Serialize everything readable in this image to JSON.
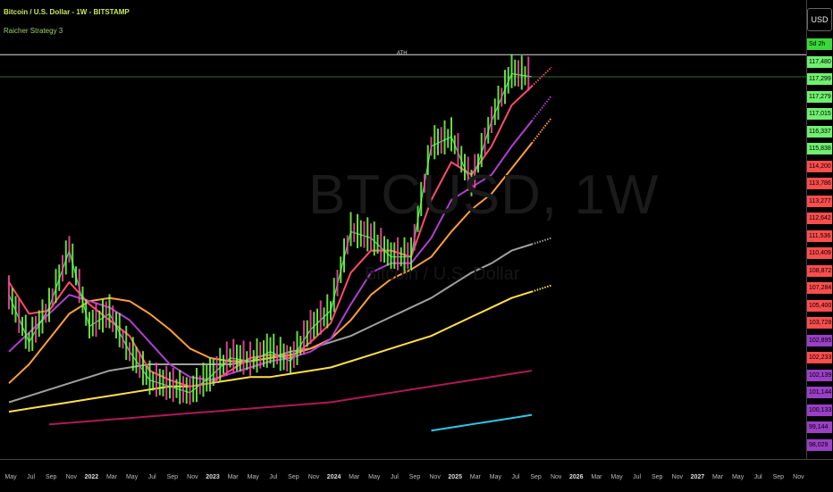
{
  "header": {
    "title": "Bitcoin / U.S. Dollar - 1W - BITSTAMP",
    "strategy": "Raicher Strategy 3"
  },
  "currency_button": "USD",
  "watermark": {
    "symbol": "BTCUSD, 1W",
    "name": "Bitcoin / U.S. Dollar"
  },
  "ath_label": "ATH",
  "price_labels": [
    {
      "text": "Sd 2h",
      "color": "#3ad93a"
    },
    {
      "text": "117,480",
      "color": "#6ff06f"
    },
    {
      "text": "117,299",
      "color": "#6ff06f"
    },
    {
      "text": "117,279",
      "color": "#6ff06f"
    },
    {
      "text": "117,015",
      "color": "#6ff06f"
    },
    {
      "text": "116,337",
      "color": "#6ff06f"
    },
    {
      "text": "115,838",
      "color": "#6ff06f"
    },
    {
      "text": "114,200",
      "color": "#ff4d4d"
    },
    {
      "text": "113,786",
      "color": "#ff4d4d"
    },
    {
      "text": "113,277",
      "color": "#ff4d4d"
    },
    {
      "text": "112,642",
      "color": "#ff4d4d"
    },
    {
      "text": "111,536",
      "color": "#ff4d4d"
    },
    {
      "text": "110,409",
      "color": "#ff4d4d"
    },
    {
      "text": "108,872",
      "color": "#ff4d4d"
    },
    {
      "text": "107,284",
      "color": "#ff4d4d"
    },
    {
      "text": "105,400",
      "color": "#ff4d4d"
    },
    {
      "text": "103,728",
      "color": "#ff4d4d"
    },
    {
      "text": "102,895",
      "color": "#9b3fc7"
    },
    {
      "text": "102,233",
      "color": "#ff4d4d"
    },
    {
      "text": "102,139",
      "color": "#9b3fc7"
    },
    {
      "text": "101,144",
      "color": "#9b3fc7"
    },
    {
      "text": "100,133",
      "color": "#9b3fc7"
    },
    {
      "text": "99,144",
      "color": "#9b3fc7"
    },
    {
      "text": "98,029",
      "color": "#9b3fc7"
    }
  ],
  "x_ticks": [
    {
      "label": "May",
      "year": false
    },
    {
      "label": "Jul",
      "year": false
    },
    {
      "label": "Sep",
      "year": false
    },
    {
      "label": "Nov",
      "year": false
    },
    {
      "label": "2022",
      "year": true
    },
    {
      "label": "Mar",
      "year": false
    },
    {
      "label": "May",
      "year": false
    },
    {
      "label": "Jul",
      "year": false
    },
    {
      "label": "Sep",
      "year": false
    },
    {
      "label": "Nov",
      "year": false
    },
    {
      "label": "2023",
      "year": true
    },
    {
      "label": "Mar",
      "year": false
    },
    {
      "label": "May",
      "year": false
    },
    {
      "label": "Jul",
      "year": false
    },
    {
      "label": "Sep",
      "year": false
    },
    {
      "label": "Nov",
      "year": false
    },
    {
      "label": "2024",
      "year": true
    },
    {
      "label": "Mar",
      "year": false
    },
    {
      "label": "May",
      "year": false
    },
    {
      "label": "Jul",
      "year": false
    },
    {
      "label": "Sep",
      "year": false
    },
    {
      "label": "Nov",
      "year": false
    },
    {
      "label": "2025",
      "year": true
    },
    {
      "label": "Mar",
      "year": false
    },
    {
      "label": "May",
      "year": false
    },
    {
      "label": "Jul",
      "year": false
    },
    {
      "label": "Sep",
      "year": false
    },
    {
      "label": "Nov",
      "year": false
    },
    {
      "label": "2026",
      "year": true
    },
    {
      "label": "Mar",
      "year": false
    },
    {
      "label": "May",
      "year": false
    },
    {
      "label": "Jul",
      "year": false
    },
    {
      "label": "Sep",
      "year": false
    },
    {
      "label": "Nov",
      "year": false
    },
    {
      "label": "2027",
      "year": true
    },
    {
      "label": "Mar",
      "year": false
    },
    {
      "label": "May",
      "year": false
    },
    {
      "label": "Jul",
      "year": false
    },
    {
      "label": "Sep",
      "year": false
    },
    {
      "label": "Nov",
      "year": false
    }
  ],
  "chart_data": {
    "type": "line",
    "title": "Bitcoin / U.S. Dollar - 1W - BITSTAMP",
    "x": [
      "2021-05",
      "2021-07",
      "2021-09",
      "2021-11",
      "2022-01",
      "2022-03",
      "2022-05",
      "2022-07",
      "2022-09",
      "2022-11",
      "2023-01",
      "2023-03",
      "2023-05",
      "2023-07",
      "2023-09",
      "2023-11",
      "2024-01",
      "2024-03",
      "2024-05",
      "2024-07",
      "2024-09",
      "2024-11",
      "2025-01",
      "2025-03",
      "2025-05",
      "2025-07",
      "2025-08"
    ],
    "series": [
      {
        "color": "#2ee86a",
        "values": [
          48,
          33,
          44,
          62,
          38,
          42,
          30,
          21,
          19,
          17,
          22,
          28,
          27,
          30,
          27,
          37,
          43,
          68,
          66,
          60,
          60,
          95,
          98,
          83,
          103,
          118,
          117
        ]
      },
      {
        "color": "#ff4d6a",
        "values": [
          52,
          42,
          43,
          52,
          45,
          40,
          35,
          24,
          21,
          19,
          20,
          24,
          28,
          29,
          28,
          33,
          39,
          55,
          62,
          62,
          60,
          78,
          90,
          86,
          95,
          108,
          114
        ]
      },
      {
        "color": "#b040d0",
        "values": [
          30,
          36,
          42,
          48,
          46,
          44,
          40,
          33,
          26,
          22,
          21,
          23,
          25,
          27,
          28,
          30,
          34,
          45,
          55,
          58,
          58,
          66,
          78,
          82,
          86,
          95,
          103
        ]
      },
      {
        "color": "#ff9f3a",
        "values": [
          20,
          26,
          34,
          42,
          46,
          47,
          46,
          42,
          37,
          31,
          28,
          27,
          27,
          28,
          29,
          31,
          34,
          40,
          48,
          53,
          56,
          60,
          68,
          75,
          80,
          88,
          96
        ]
      },
      {
        "color": "#a0a0a0",
        "values": [
          14,
          16,
          18,
          20,
          22,
          24,
          25,
          26,
          26,
          26,
          26,
          26,
          27,
          28,
          30,
          31,
          33,
          35,
          38,
          41,
          44,
          47,
          51,
          55,
          58,
          62,
          64
        ]
      },
      {
        "color": "#ffe04a",
        "values": [
          11,
          12,
          13,
          14,
          15,
          16,
          17,
          18,
          19,
          19,
          20,
          21,
          22,
          22,
          23,
          24,
          25,
          27,
          29,
          31,
          33,
          35,
          38,
          41,
          44,
          47,
          49
        ]
      },
      {
        "color": "#b0185a",
        "values": [
          null,
          null,
          7,
          7.5,
          8,
          8.5,
          9,
          9.5,
          10,
          10.5,
          11,
          11.5,
          12,
          12.5,
          13,
          13.5,
          14,
          15,
          16,
          17,
          18,
          19,
          20,
          21,
          22,
          23,
          24
        ]
      },
      {
        "color": "#2ec8e8",
        "values": [
          null,
          null,
          null,
          null,
          null,
          null,
          null,
          null,
          null,
          null,
          null,
          null,
          null,
          null,
          null,
          null,
          null,
          null,
          null,
          null,
          null,
          5,
          6,
          7,
          8,
          9,
          10
        ]
      }
    ],
    "ath_level": 124,
    "ylim": [
      0,
      130
    ],
    "grid": false
  }
}
